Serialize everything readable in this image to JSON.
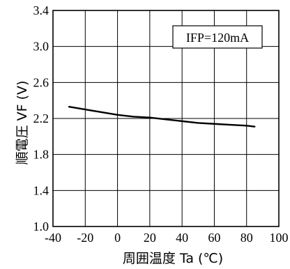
{
  "chart_data": {
    "type": "line",
    "title": "",
    "xlabel": "周囲温度 Ta (℃)",
    "ylabel": "順電圧  VF (V)",
    "xlim": [
      -40,
      100
    ],
    "ylim": [
      1.0,
      3.4
    ],
    "xticks": [
      "-40",
      "-20",
      "0",
      "20",
      "40",
      "60",
      "80",
      "100"
    ],
    "yticks": [
      "1.0",
      "1.4",
      "1.8",
      "2.2",
      "2.6",
      "3.0",
      "3.4"
    ],
    "grid": true,
    "annotation": "IFP=120mA",
    "series": [
      {
        "x": [
          -30,
          -20,
          -10,
          0,
          10,
          20,
          30,
          40,
          50,
          60,
          70,
          80,
          85
        ],
        "y": [
          2.33,
          2.3,
          2.27,
          2.24,
          2.22,
          2.21,
          2.19,
          2.17,
          2.15,
          2.14,
          2.13,
          2.12,
          2.11
        ]
      }
    ]
  }
}
